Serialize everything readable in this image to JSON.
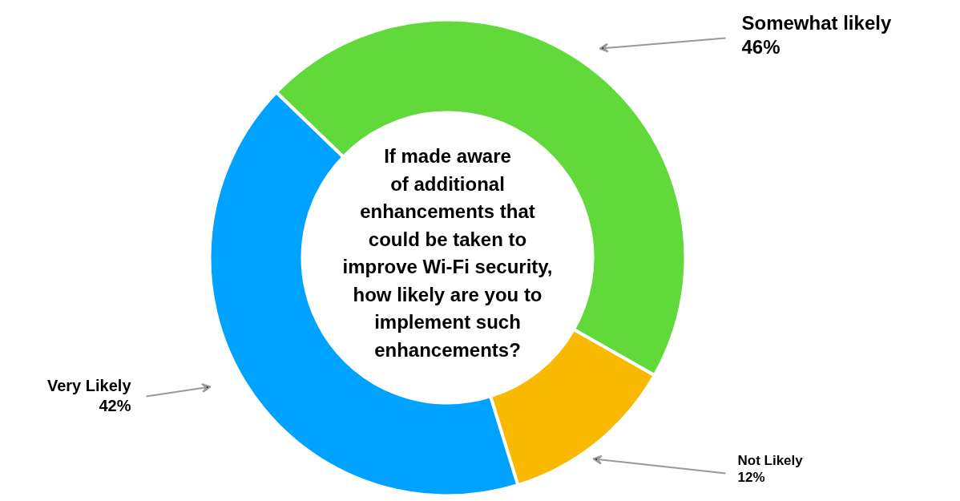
{
  "chart_data": {
    "type": "donut",
    "title": "If made aware\nof additional\nenhancements that\ncould be taken to\nimprove Wi-Fi security,\nhow likely are you to\nimplement such\nenhancements?",
    "categories": [
      "Somewhat likely",
      "Not Likely",
      "Very Likely"
    ],
    "values": [
      46,
      12,
      42
    ],
    "colors": [
      "#62d93a",
      "#f8b900",
      "#00a2ff"
    ],
    "value_labels": [
      "46%",
      "12%",
      "42%"
    ]
  }
}
